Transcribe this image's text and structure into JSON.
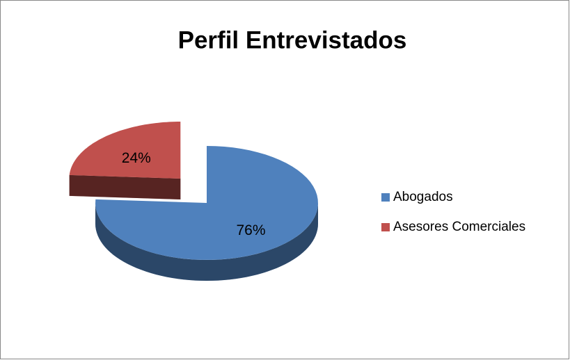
{
  "chart_data": {
    "type": "pie",
    "title": "Perfil Entrevistados",
    "categories": [
      "Abogados",
      "Asesores Comerciales"
    ],
    "values": [
      76,
      24
    ],
    "value_labels": [
      "76%",
      "24%"
    ],
    "colors": [
      "#4f81bd",
      "#c0504d"
    ],
    "legend": "right"
  }
}
